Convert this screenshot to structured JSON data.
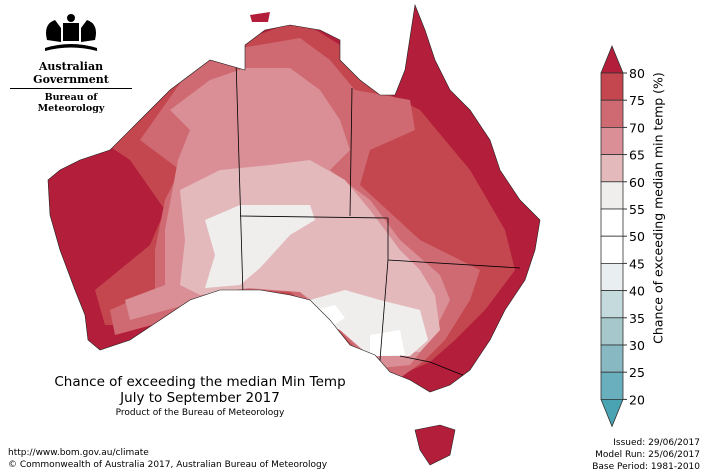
{
  "logo": {
    "line1": "Australian Government",
    "line2": "Bureau of Meteorology"
  },
  "title": {
    "line1": "Chance of exceeding the median Min Temp",
    "line2": "July to September 2017",
    "product": "Product of the Bureau of Meteorology"
  },
  "footer": {
    "url": "http://www.bom.gov.au/climate",
    "copyright": "© Commonwealth of Australia 2017, Australian Bureau of Meteorology"
  },
  "meta": {
    "issued": "Issued: 29/06/2017",
    "model_run": "Model Run: 25/06/2017",
    "base_period": "Base Period: 1981-2010"
  },
  "colorbar": {
    "label": "Chance of exceeding median min temp (%)",
    "ticks": [
      "80",
      "75",
      "70",
      "65",
      "60",
      "55",
      "50",
      "45",
      "40",
      "35",
      "30",
      "25",
      "20"
    ],
    "over_color": "#b31e3b",
    "under_color": "#4aa3b3",
    "colors": [
      "#c4474f",
      "#cf6a72",
      "#d98f95",
      "#e3b9bc",
      "#efeeed",
      "#ffffff",
      "#ffffff",
      "#e9eef1",
      "#c5dadd",
      "#a6c8cc",
      "#88b9c3",
      "#6aafbd"
    ]
  },
  "map_colors": {
    ">80": "#b31e3b",
    "75-80": "#c4474f",
    "70-75": "#cf6a72",
    "65-70": "#d98f95",
    "60-65": "#e3b9bc",
    "55-60": "#efeeed",
    "50-55": "#ffffff"
  }
}
